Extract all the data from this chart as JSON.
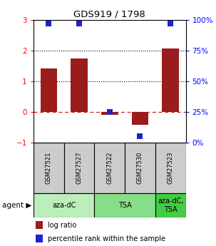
{
  "title": "GDS919 / 1798",
  "samples": [
    "GSM27521",
    "GSM27527",
    "GSM27522",
    "GSM27530",
    "GSM27523"
  ],
  "log_ratios": [
    1.42,
    1.75,
    -0.1,
    -0.42,
    2.07
  ],
  "percentiles": [
    97,
    97,
    25,
    5,
    97
  ],
  "ylim_left": [
    -1,
    3
  ],
  "ylim_right": [
    0,
    100
  ],
  "hlines_dotted": [
    1,
    2
  ],
  "hline_dashed": 0,
  "bar_color": "#9B1C1C",
  "dot_color": "#2222CC",
  "background_color": "#FFFFFF",
  "agent_groups": [
    {
      "label": "aza-dC",
      "span": [
        0,
        2
      ],
      "color": "#BBEEBB"
    },
    {
      "label": "TSA",
      "span": [
        2,
        4
      ],
      "color": "#88DD88"
    },
    {
      "label": "aza-dC,\nTSA",
      "span": [
        4,
        5
      ],
      "color": "#44CC44"
    }
  ],
  "legend_log_ratio": "log ratio",
  "legend_percentile": "percentile rank within the sample",
  "bar_width": 0.55,
  "dot_size": 30
}
